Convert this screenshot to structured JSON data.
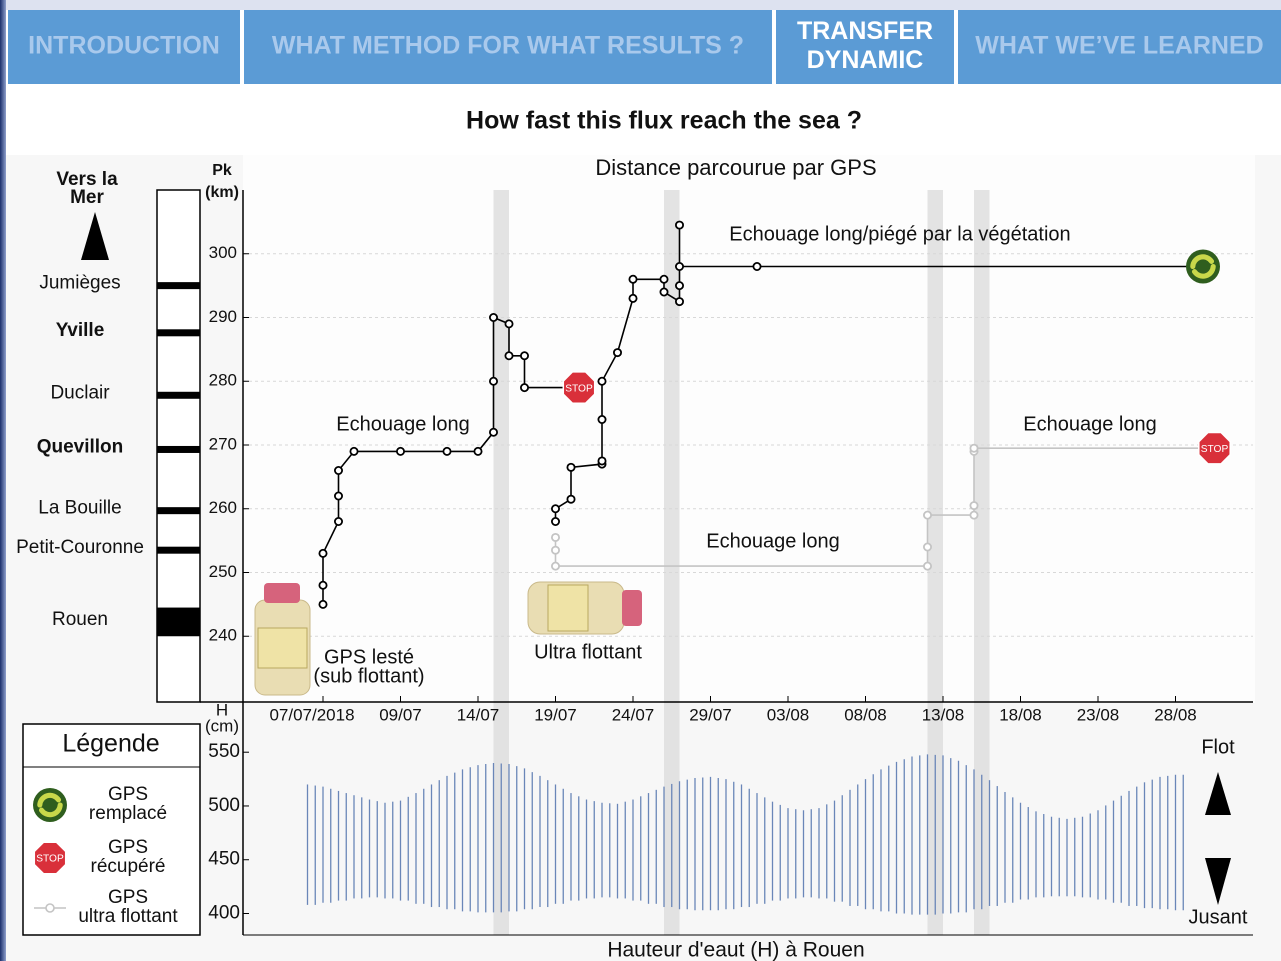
{
  "nav": {
    "tabs": [
      {
        "label": [
          "INTRODUCTION"
        ],
        "active": false
      },
      {
        "label": [
          "WHAT METHOD FOR WHAT RESULTS ?"
        ],
        "active": false
      },
      {
        "label": [
          "TRANSFER",
          "DYNAMIC"
        ],
        "active": true
      },
      {
        "label": [
          "WHAT WE’VE LEARNED"
        ],
        "active": false
      }
    ]
  },
  "heading": "How fast this flux reach the sea ?",
  "chart_data": [
    {
      "type": "line",
      "title": "Distance parcourue par GPS",
      "y_label": [
        "Pk",
        "(km)"
      ],
      "ylim": [
        230,
        310
      ],
      "yticks": [
        240,
        250,
        260,
        270,
        280,
        290,
        300
      ],
      "grid": true,
      "xticks": [
        "07/07/2018",
        "09/07",
        "14/07",
        "19/07",
        "24/07",
        "29/07",
        "03/08",
        "08/08",
        "13/08",
        "18/08",
        "23/08",
        "28/08"
      ],
      "direction": [
        "Vers la",
        "Mer"
      ],
      "places": [
        {
          "name": "Jumièges",
          "pk": 295,
          "bold": false
        },
        {
          "name": "Yville",
          "pk": 287.6,
          "bold": true
        },
        {
          "name": "Duclair",
          "pk": 277.8,
          "bold": false
        },
        {
          "name": "Quevillon",
          "pk": 269.3,
          "bold": true
        },
        {
          "name": "La Bouille",
          "pk": 259.7,
          "bold": false
        },
        {
          "name": "Petit-Couronne",
          "pk": 253.5,
          "bold": false
        },
        {
          "name": "Rouen",
          "pk_range": [
            240,
            244.5
          ],
          "bold": false
        }
      ],
      "highlight_bands": [
        [
          "15/07",
          "16/07"
        ],
        [
          "26/07",
          "27/07"
        ],
        [
          "12/08",
          "13/08"
        ],
        [
          "15/08",
          "16/08"
        ]
      ],
      "stop_label": "STOP",
      "series": [
        {
          "color": "#000000",
          "end": "stop",
          "x": [
            "04/07",
            "04/07",
            "04/07",
            "05/07",
            "05/07",
            "05/07",
            "06/07",
            "09/07",
            "12/07",
            "14/07",
            "15/07",
            "15/07",
            "15/07",
            "16/07",
            "16/07",
            "17/07",
            "17/07",
            "20/07"
          ],
          "values": [
            245,
            248,
            253,
            258,
            262,
            266,
            269,
            269,
            269,
            269,
            272,
            280,
            290,
            289,
            284,
            284,
            279,
            279
          ]
        },
        {
          "color": "#000000",
          "end": "replaced",
          "x": [
            "19/07",
            "19/07",
            "20/07",
            "20/07",
            "22/07",
            "22/07",
            "22/07",
            "22/07",
            "23/07",
            "24/07",
            "24/07",
            "26/07",
            "26/07",
            "27/07",
            "27/07",
            "27/07",
            "27/07",
            "01/08",
            "29/08"
          ],
          "values": [
            258,
            260,
            261.5,
            266.5,
            267,
            267.5,
            274,
            280,
            284.5,
            293,
            296,
            296,
            294,
            292.5,
            295,
            304.5,
            298,
            298,
            298
          ]
        },
        {
          "color": "#c4c4c4",
          "end": "stop",
          "x": [
            "19/07",
            "19/07",
            "19/07",
            "12/08",
            "12/08",
            "12/08",
            "15/08",
            "15/08",
            "15/08",
            "15/08",
            "30/08"
          ],
          "values": [
            253.5,
            255.5,
            251,
            251,
            254,
            259,
            259,
            260.5,
            269,
            269.5,
            269.5
          ]
        }
      ],
      "annotations": [
        "Echouage long",
        "Echouage long/piégé par la végétation",
        "Echouage long",
        "Echouage long"
      ],
      "bottle_labels": [
        [
          "GPS lesté",
          "(sub flottant)"
        ],
        [
          "Ultra flottant"
        ]
      ],
      "legend": {
        "title": "Légende",
        "items": [
          [
            "GPS",
            "remplacé"
          ],
          [
            "GPS",
            "récupéré"
          ],
          [
            "GPS",
            "ultra flottant"
          ]
        ]
      }
    },
    {
      "type": "range",
      "x_title": "Hauteur d'eaut (H) à Rouen",
      "y_label": [
        "H",
        "(cm)"
      ],
      "ylim": [
        380,
        566
      ],
      "yticks": [
        400,
        450,
        500,
        550
      ],
      "color": "#6a86b8",
      "flow_labels": [
        "Flot",
        "Jusant"
      ],
      "x": [
        "03/07",
        "04/07",
        "05/07",
        "06/07",
        "07/07",
        "08/07",
        "09/07",
        "10/07",
        "11/07",
        "12/07",
        "13/07",
        "14/07",
        "15/07",
        "16/07",
        "17/07",
        "18/07",
        "19/07",
        "20/07",
        "21/07",
        "22/07",
        "23/07",
        "24/07",
        "25/07",
        "26/07",
        "27/07",
        "28/07",
        "29/07",
        "30/07",
        "31/07",
        "01/08",
        "02/08",
        "03/08",
        "04/08",
        "05/08",
        "06/08",
        "07/08",
        "08/08",
        "09/08",
        "10/08",
        "11/08",
        "12/08",
        "13/08",
        "14/08",
        "15/08",
        "16/08",
        "17/08",
        "18/08",
        "19/08",
        "20/08",
        "21/08",
        "22/08",
        "23/08",
        "24/08",
        "25/08",
        "26/08",
        "27/08",
        "28/08"
      ],
      "highs": [
        520,
        518,
        514,
        510,
        506,
        503,
        505,
        512,
        520,
        528,
        534,
        538,
        540,
        539,
        535,
        528,
        520,
        512,
        506,
        503,
        502,
        506,
        512,
        518,
        523,
        526,
        527,
        525,
        520,
        512,
        504,
        498,
        496,
        498,
        505,
        515,
        525,
        534,
        541,
        546,
        548,
        547,
        542,
        534,
        524,
        513,
        503,
        495,
        490,
        488,
        490,
        496,
        505,
        514,
        522,
        527,
        529
      ],
      "lows": [
        408,
        410,
        412,
        414,
        415,
        414,
        412,
        409,
        406,
        404,
        402,
        401,
        401,
        402,
        404,
        406,
        409,
        412,
        414,
        415,
        414,
        412,
        409,
        406,
        404,
        403,
        403,
        404,
        406,
        409,
        412,
        414,
        415,
        414,
        411,
        407,
        404,
        402,
        400,
        399,
        399,
        400,
        401,
        404,
        407,
        410,
        413,
        415,
        416,
        416,
        415,
        413,
        410,
        407,
        405,
        404,
        403
      ]
    }
  ]
}
